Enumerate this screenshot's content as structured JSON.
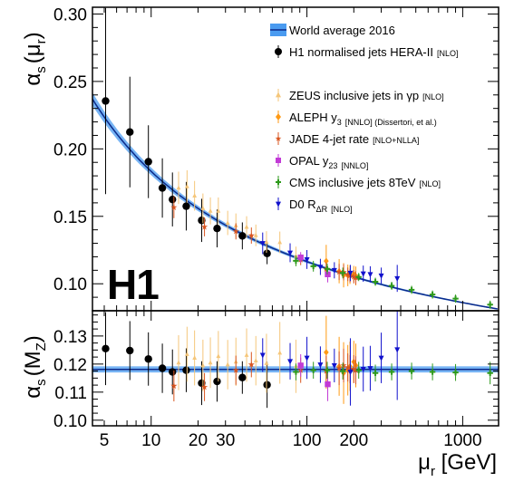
{
  "chart_data": {
    "type": "scatter",
    "logo": "H1",
    "xlabel": {
      "main": "μ",
      "sub": "r",
      "unit": " [GeV]"
    },
    "x_scale": "log",
    "xlim": [
      4.2,
      1700
    ],
    "x_ticks": [
      {
        "value": 5,
        "label": "5"
      },
      {
        "value": 10,
        "label": "10"
      },
      {
        "value": 20,
        "label": "20"
      },
      {
        "value": 30,
        "label": "30"
      },
      {
        "value": 100,
        "label": "100"
      },
      {
        "value": 200,
        "label": "200"
      },
      {
        "value": 1000,
        "label": "1000"
      }
    ],
    "top_panel": {
      "ylabel": {
        "main": "α",
        "sub1": "s",
        "paren_open": "(μ",
        "sub2": "r",
        "paren_close": ")"
      },
      "ylim": [
        0.08,
        0.305
      ],
      "y_ticks": [
        {
          "value": 0.1,
          "label": "0.10"
        },
        {
          "value": 0.15,
          "label": "0.15"
        },
        {
          "value": 0.2,
          "label": "0.20"
        },
        {
          "value": 0.25,
          "label": "0.25"
        },
        {
          "value": 0.3,
          "label": "0.30"
        }
      ]
    },
    "bottom_panel": {
      "ylabel": {
        "main": "α",
        "sub1": "s",
        "paren_open": "(M",
        "sub2": "Z",
        "paren_close": ")"
      },
      "ylim": [
        0.098,
        0.139
      ],
      "y_ticks": [
        {
          "value": 0.1,
          "label": "0.10"
        },
        {
          "value": 0.11,
          "label": "0.11"
        },
        {
          "value": 0.12,
          "label": "0.12"
        },
        {
          "value": 0.13,
          "label": "0.13"
        }
      ]
    },
    "world_average": {
      "alphas_mz": 0.1181,
      "band": 0.0011
    },
    "legend": [
      {
        "id": "wa",
        "text": "World average 2016",
        "sub": "",
        "tail": "",
        "tag": "",
        "color": "#1f5fd6",
        "marker": "band",
        "gap_after": false
      },
      {
        "id": "h1",
        "text": "H1 normalised jets HERA-II",
        "sub": "",
        "tail": "",
        "tag": "[NLO]",
        "color": "#000000",
        "marker": "circle",
        "gap_after": true
      },
      {
        "id": "zeus",
        "text": "ZEUS inclusive jets in γp",
        "sub": "",
        "tail": "",
        "tag": "[NLO]",
        "color": "#f5c67a",
        "marker": "triangle-up",
        "gap_after": false
      },
      {
        "id": "aleph",
        "text": "ALEPH y",
        "sub": "3",
        "tail": "",
        "tag": "[NNLO] (Dissertori, et al.)",
        "color": "#ff9a14",
        "marker": "diamond",
        "gap_after": false
      },
      {
        "id": "jade",
        "text": "JADE 4-jet rate",
        "sub": "",
        "tail": "",
        "tag": "[NLO+NLLA]",
        "color": "#d9541e",
        "marker": "star",
        "gap_after": false
      },
      {
        "id": "opal",
        "text": "OPAL y",
        "sub": "23",
        "tail": "",
        "tag": "[NNLO]",
        "color": "#c23ad6",
        "marker": "square",
        "gap_after": false
      },
      {
        "id": "cms",
        "text": "CMS inclusive jets 8TeV",
        "sub": "",
        "tail": "",
        "tag": "[NLO]",
        "color": "#2e9a1b",
        "marker": "cross",
        "gap_after": false
      },
      {
        "id": "d0",
        "text": "D0 R",
        "sub": "ΔR",
        "tail": "",
        "tag": "[NLO]",
        "color": "#1111cc",
        "marker": "triangle-down",
        "gap_after": false
      }
    ],
    "series": [
      {
        "id": "h1",
        "points": [
          {
            "x": 5.1,
            "y": 0.2355,
            "ey": 0.069,
            "y_mz": 0.1255,
            "ey_mz": 0.013
          },
          {
            "x": 7.3,
            "y": 0.2125,
            "ey": 0.041,
            "y_mz": 0.1248,
            "ey_mz": 0.0105
          },
          {
            "x": 9.6,
            "y": 0.1905,
            "ey": 0.027,
            "y_mz": 0.1218,
            "ey_mz": 0.0095
          },
          {
            "x": 11.8,
            "y": 0.171,
            "ey": 0.022,
            "y_mz": 0.1185,
            "ey_mz": 0.0088
          },
          {
            "x": 13.7,
            "y": 0.1625,
            "ey": 0.02,
            "y_mz": 0.1172,
            "ey_mz": 0.008
          },
          {
            "x": 16.8,
            "y": 0.1575,
            "ey": 0.018,
            "y_mz": 0.1178,
            "ey_mz": 0.0078
          },
          {
            "x": 21.1,
            "y": 0.147,
            "ey": 0.016,
            "y_mz": 0.1132,
            "ey_mz": 0.0078
          },
          {
            "x": 26.5,
            "y": 0.141,
            "ey": 0.014,
            "y_mz": 0.1138,
            "ey_mz": 0.0072
          },
          {
            "x": 38.5,
            "y": 0.1355,
            "ey": 0.01,
            "y_mz": 0.1152,
            "ey_mz": 0.0058
          },
          {
            "x": 55.5,
            "y": 0.1225,
            "ey": 0.008,
            "y_mz": 0.1126,
            "ey_mz": 0.0082
          }
        ]
      },
      {
        "id": "zeus",
        "points": [
          {
            "x": 15.0,
            "ey": 0.012,
            "y_mz": 0.1205,
            "ey_mz": 0.0098
          },
          {
            "x": 17.0,
            "ey": 0.012,
            "y_mz": 0.1235,
            "ey_mz": 0.0098
          },
          {
            "x": 19.0,
            "ey": 0.011,
            "y_mz": 0.1222,
            "ey_mz": 0.0098
          },
          {
            "x": 21.5,
            "ey": 0.011,
            "y_mz": 0.1195,
            "ey_mz": 0.0092
          },
          {
            "x": 24.0,
            "ey": 0.01,
            "y_mz": 0.1205,
            "ey_mz": 0.009
          },
          {
            "x": 27.0,
            "ey": 0.01,
            "y_mz": 0.1228,
            "ey_mz": 0.009
          },
          {
            "x": 31.0,
            "ey": 0.009,
            "y_mz": 0.1198,
            "ey_mz": 0.0088
          },
          {
            "x": 35.0,
            "ey": 0.009,
            "y_mz": 0.1208,
            "ey_mz": 0.0086
          },
          {
            "x": 41.0,
            "ey": 0.008,
            "y_mz": 0.1232,
            "ey_mz": 0.0095
          },
          {
            "x": 47.0,
            "ey": 0.008,
            "y_mz": 0.1212,
            "ey_mz": 0.0088
          },
          {
            "x": 55.0,
            "ey": 0.008,
            "y_mz": 0.1203,
            "ey_mz": 0.0105
          },
          {
            "x": 67.0,
            "ey": 0.008,
            "y_mz": 0.124,
            "ey_mz": 0.011
          },
          {
            "x": 85.0,
            "ey": 0.007,
            "y_mz": 0.1192,
            "ey_mz": 0.0095
          }
        ]
      },
      {
        "id": "aleph",
        "points": [
          {
            "x": 133,
            "ey": 0.012,
            "y_mz": 0.1242,
            "ey_mz": 0.013
          },
          {
            "x": 161,
            "ey": 0.009,
            "y_mz": 0.1192,
            "ey_mz": 0.0105
          },
          {
            "x": 172,
            "ey": 0.009,
            "y_mz": 0.1168,
            "ey_mz": 0.011
          },
          {
            "x": 183,
            "ey": 0.008,
            "y_mz": 0.1178,
            "ey_mz": 0.009
          },
          {
            "x": 189,
            "ey": 0.007,
            "y_mz": 0.1192,
            "ey_mz": 0.0088
          },
          {
            "x": 200,
            "ey": 0.006,
            "y_mz": 0.1208,
            "ey_mz": 0.0075
          },
          {
            "x": 206,
            "ey": 0.007,
            "y_mz": 0.1195,
            "ey_mz": 0.0078
          }
        ]
      },
      {
        "id": "jade",
        "points": [
          {
            "x": 14.0,
            "ey": 0.008,
            "y_mz": 0.1122,
            "ey_mz": 0.0055
          },
          {
            "x": 22.0,
            "ey": 0.007,
            "y_mz": 0.1118,
            "ey_mz": 0.005
          },
          {
            "x": 35.0,
            "ey": 0.006,
            "y_mz": 0.1178,
            "ey_mz": 0.0052
          },
          {
            "x": 44.0,
            "ey": 0.006,
            "y_mz": 0.1198,
            "ey_mz": 0.0045
          },
          {
            "x": 91.2,
            "ey": 0.004,
            "y_mz": 0.1178,
            "ey_mz": 0.0045
          },
          {
            "x": 133,
            "ey": 0.005,
            "y_mz": 0.1175,
            "ey_mz": 0.0055
          },
          {
            "x": 161,
            "ey": 0.006,
            "y_mz": 0.1185,
            "ey_mz": 0.006
          },
          {
            "x": 172,
            "ey": 0.006,
            "y_mz": 0.1195,
            "ey_mz": 0.006
          },
          {
            "x": 183,
            "ey": 0.005,
            "y_mz": 0.1188,
            "ey_mz": 0.005
          },
          {
            "x": 189,
            "ey": 0.005,
            "y_mz": 0.1182,
            "ey_mz": 0.005
          },
          {
            "x": 200,
            "ey": 0.005,
            "y_mz": 0.1182,
            "ey_mz": 0.005
          },
          {
            "x": 206,
            "ey": 0.005,
            "y_mz": 0.1178,
            "ey_mz": 0.005
          }
        ]
      },
      {
        "id": "opal",
        "points": [
          {
            "x": 91.2,
            "y": 0.1195,
            "ey": 0.004,
            "y_mz": 0.1195,
            "ey_mz": 0.004
          },
          {
            "x": 136,
            "y": 0.107,
            "ey": 0.006,
            "y_mz": 0.1128,
            "ey_mz": 0.006
          }
        ]
      },
      {
        "id": "cms",
        "points": [
          {
            "x": 85,
            "y": 0.117,
            "ey": 0.004,
            "y_mz": 0.1172,
            "ey_mz": 0.003
          },
          {
            "x": 110,
            "y": 0.113,
            "ey": 0.004,
            "y_mz": 0.1178,
            "ey_mz": 0.003
          },
          {
            "x": 135,
            "y": 0.111,
            "ey": 0.004,
            "y_mz": 0.1178,
            "ey_mz": 0.003
          },
          {
            "x": 170,
            "y": 0.108,
            "ey": 0.004,
            "y_mz": 0.1175,
            "ey_mz": 0.003
          },
          {
            "x": 215,
            "y": 0.105,
            "ey": 0.003,
            "y_mz": 0.1178,
            "ey_mz": 0.003
          },
          {
            "x": 275,
            "y": 0.1015,
            "ey": 0.003,
            "y_mz": 0.1168,
            "ey_mz": 0.003
          },
          {
            "x": 350,
            "y": 0.0985,
            "ey": 0.003,
            "y_mz": 0.1172,
            "ey_mz": 0.003
          },
          {
            "x": 470,
            "y": 0.0955,
            "ey": 0.003,
            "y_mz": 0.1175,
            "ey_mz": 0.003
          },
          {
            "x": 640,
            "y": 0.092,
            "ey": 0.003,
            "y_mz": 0.1172,
            "ey_mz": 0.003
          },
          {
            "x": 900,
            "y": 0.089,
            "ey": 0.003,
            "y_mz": 0.117,
            "ey_mz": 0.003
          },
          {
            "x": 1500,
            "y": 0.0845,
            "ey": 0.003,
            "y_mz": 0.1168,
            "ey_mz": 0.004
          }
        ]
      },
      {
        "id": "d0",
        "points": [
          {
            "x": 52,
            "y": 0.13,
            "ey": 0.008,
            "y_mz": 0.1232,
            "ey_mz": 0.006
          },
          {
            "x": 78,
            "y": 0.123,
            "ey": 0.007,
            "y_mz": 0.121,
            "ey_mz": 0.0065
          },
          {
            "x": 100,
            "y": 0.118,
            "ey": 0.007,
            "y_mz": 0.1222,
            "ey_mz": 0.0075
          },
          {
            "x": 122,
            "y": 0.1125,
            "ey": 0.006,
            "y_mz": 0.1198,
            "ey_mz": 0.0065
          },
          {
            "x": 150,
            "y": 0.11,
            "ey": 0.006,
            "y_mz": 0.1195,
            "ey_mz": 0.006
          },
          {
            "x": 230,
            "y": 0.1075,
            "ey": 0.006,
            "y_mz": 0.1182,
            "ey_mz": 0.008
          },
          {
            "x": 255,
            "y": 0.107,
            "ey": 0.006,
            "y_mz": 0.1185,
            "ey_mz": 0.008
          },
          {
            "x": 300,
            "y": 0.106,
            "ey": 0.006,
            "y_mz": 0.1222,
            "ey_mz": 0.009
          },
          {
            "x": 380,
            "y": 0.104,
            "ey": 0.01,
            "y_mz": 0.1252,
            "ey_mz": 0.018
          },
          {
            "x": 190,
            "y": 0.108,
            "ey": 0.006,
            "y_mz": 0.1172,
            "ey_mz": 0.012
          }
        ]
      }
    ]
  }
}
